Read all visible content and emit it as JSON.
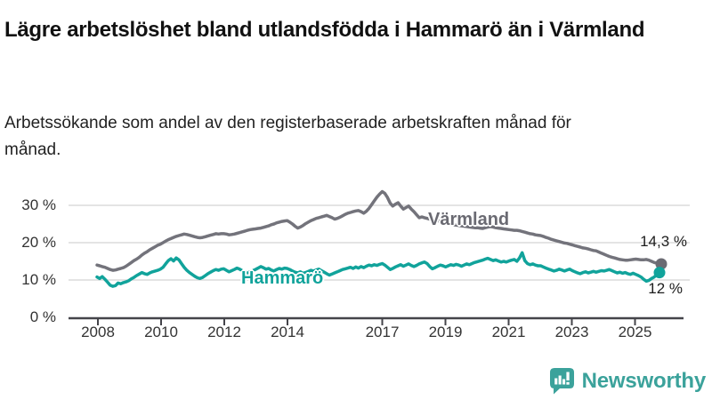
{
  "header": {
    "title": "Lägre arbetslöshet bland utlandsfödda i Hammarö än i Värmland",
    "subtitle": "Arbetssökande som andel av den registerbaserade arbetskraften månad för månad."
  },
  "footer": {
    "brand": "Newsworthy"
  },
  "colors": {
    "hammaro": "#11a39b",
    "varmland": "#73737b",
    "varmland_label": "#6a6a72",
    "grid": "#dcdcdc",
    "axis": "#44444a",
    "brand_teal": "#3ba29b"
  },
  "chart_data": {
    "type": "line",
    "title": "Lägre arbetslöshet bland utlandsfödda i Hammarö än i Värmland",
    "xlabel": "",
    "ylabel": "",
    "ylim": [
      0,
      35
    ],
    "grid": "horizontal",
    "frequency": "monthly",
    "x_start": "2008-01",
    "x_end": "2025-10",
    "x_tick_labels": [
      "2008",
      "2010",
      "2012",
      "2014",
      "2017",
      "2019",
      "2021",
      "2023",
      "2025"
    ],
    "y_tick_labels": [
      "0 %",
      "10 %",
      "20 %",
      "30 %"
    ],
    "series": [
      {
        "name": "Värmland",
        "end_label": "14,3 %",
        "end_value": 14.3,
        "values": [
          14.0,
          13.8,
          13.6,
          13.4,
          13.1,
          12.8,
          12.6,
          12.7,
          12.9,
          13.1,
          13.3,
          13.7,
          14.2,
          14.7,
          15.2,
          15.6,
          16.1,
          16.7,
          17.2,
          17.6,
          18.1,
          18.5,
          18.9,
          19.3,
          19.6,
          20.0,
          20.4,
          20.8,
          21.1,
          21.4,
          21.7,
          21.9,
          22.1,
          22.3,
          22.2,
          22.0,
          21.8,
          21.6,
          21.4,
          21.3,
          21.4,
          21.6,
          21.8,
          22.0,
          22.2,
          22.4,
          22.3,
          22.4,
          22.4,
          22.3,
          22.1,
          22.2,
          22.3,
          22.5,
          22.7,
          22.9,
          23.1,
          23.3,
          23.5,
          23.6,
          23.7,
          23.8,
          23.9,
          24.1,
          24.3,
          24.5,
          24.8,
          25.0,
          25.3,
          25.5,
          25.7,
          25.8,
          25.9,
          25.5,
          25.0,
          24.4,
          23.9,
          24.2,
          24.6,
          25.1,
          25.5,
          25.9,
          26.2,
          26.5,
          26.7,
          26.9,
          27.1,
          27.3,
          27.0,
          26.7,
          26.3,
          26.5,
          26.8,
          27.2,
          27.6,
          27.9,
          28.1,
          28.3,
          28.5,
          28.6,
          28.3,
          27.9,
          28.4,
          29.2,
          30.2,
          31.2,
          32.2,
          33.0,
          33.7,
          33.2,
          32.1,
          30.6,
          29.8,
          30.3,
          30.7,
          29.8,
          29.0,
          29.4,
          29.8,
          29.0,
          28.3,
          27.5,
          26.7,
          26.9,
          26.7,
          26.5,
          26.3,
          26.2,
          26.0,
          25.9,
          25.7,
          25.5,
          25.3,
          25.1,
          25.0,
          24.8,
          24.7,
          24.6,
          24.5,
          24.4,
          24.3,
          24.2,
          24.1,
          24.0,
          24.0,
          23.9,
          23.8,
          24.0,
          24.2,
          24.3,
          24.2,
          24.0,
          23.9,
          23.8,
          23.7,
          23.6,
          23.5,
          23.4,
          23.3,
          23.3,
          23.2,
          23.0,
          22.8,
          22.6,
          22.4,
          22.3,
          22.1,
          22.0,
          21.9,
          21.7,
          21.4,
          21.2,
          20.9,
          20.7,
          20.5,
          20.3,
          20.1,
          19.9,
          19.8,
          19.6,
          19.4,
          19.2,
          19.0,
          18.8,
          18.6,
          18.5,
          18.3,
          18.1,
          17.9,
          17.8,
          17.5,
          17.2,
          16.9,
          16.6,
          16.3,
          16.1,
          15.9,
          15.7,
          15.5,
          15.4,
          15.3,
          15.3,
          15.4,
          15.5,
          15.6,
          15.5,
          15.4,
          15.4,
          15.5,
          15.3,
          15.0,
          14.7,
          14.5,
          14.3
        ]
      },
      {
        "name": "Hammarö",
        "end_label": "12 %",
        "end_value": 12.0,
        "values": [
          10.8,
          10.4,
          10.9,
          10.2,
          9.4,
          8.6,
          8.3,
          8.5,
          9.2,
          9.0,
          9.3,
          9.5,
          9.8,
          10.3,
          10.7,
          11.2,
          11.6,
          12.0,
          11.7,
          11.5,
          11.9,
          12.2,
          12.4,
          12.6,
          12.9,
          13.4,
          14.3,
          15.2,
          15.7,
          15.1,
          15.9,
          15.4,
          14.4,
          13.4,
          12.6,
          12.0,
          11.5,
          11.0,
          10.6,
          10.4,
          10.7,
          11.2,
          11.7,
          12.1,
          12.5,
          12.8,
          12.6,
          12.9,
          13.0,
          12.6,
          12.2,
          12.5,
          12.8,
          13.2,
          12.9,
          12.5,
          12.1,
          11.8,
          12.2,
          12.5,
          12.8,
          13.2,
          13.6,
          13.3,
          12.9,
          13.1,
          12.7,
          12.4,
          12.8,
          13.1,
          12.9,
          13.2,
          13.1,
          12.8,
          12.4,
          12.1,
          11.9,
          12.2,
          11.8,
          12.0,
          12.3,
          12.6,
          12.4,
          12.7,
          12.9,
          12.5,
          12.1,
          11.7,
          11.3,
          11.6,
          11.9,
          12.2,
          12.5,
          12.8,
          13.0,
          13.2,
          13.4,
          13.1,
          13.5,
          13.2,
          13.6,
          13.3,
          13.7,
          14.0,
          13.8,
          14.1,
          13.9,
          14.2,
          14.4,
          14.0,
          13.4,
          12.8,
          13.1,
          13.5,
          13.8,
          14.1,
          13.7,
          14.0,
          14.3,
          13.9,
          13.6,
          13.9,
          14.3,
          14.6,
          14.8,
          14.4,
          13.6,
          13.0,
          13.3,
          13.7,
          14.0,
          13.8,
          13.5,
          13.8,
          14.1,
          13.9,
          14.2,
          14.0,
          13.7,
          14.0,
          14.3,
          14.1,
          14.4,
          14.7,
          14.9,
          15.1,
          15.3,
          15.6,
          15.8,
          15.5,
          15.2,
          15.4,
          15.1,
          14.8,
          15.0,
          14.8,
          15.1,
          15.3,
          15.5,
          15.0,
          15.9,
          17.3,
          15.2,
          14.4,
          14.1,
          14.3,
          14.0,
          13.8,
          13.8,
          13.5,
          13.2,
          12.9,
          12.7,
          12.4,
          12.6,
          12.9,
          12.7,
          12.4,
          12.7,
          12.9,
          12.5,
          12.2,
          11.9,
          11.7,
          12.0,
          12.2,
          11.9,
          12.1,
          12.3,
          12.1,
          12.3,
          12.5,
          12.4,
          12.6,
          12.8,
          12.5,
          12.2,
          11.9,
          12.1,
          11.8,
          12.0,
          11.7,
          11.5,
          11.8,
          11.5,
          11.2,
          10.8,
          10.2,
          9.7,
          9.9,
          10.4,
          10.8,
          11.4,
          12.0
        ]
      }
    ]
  }
}
